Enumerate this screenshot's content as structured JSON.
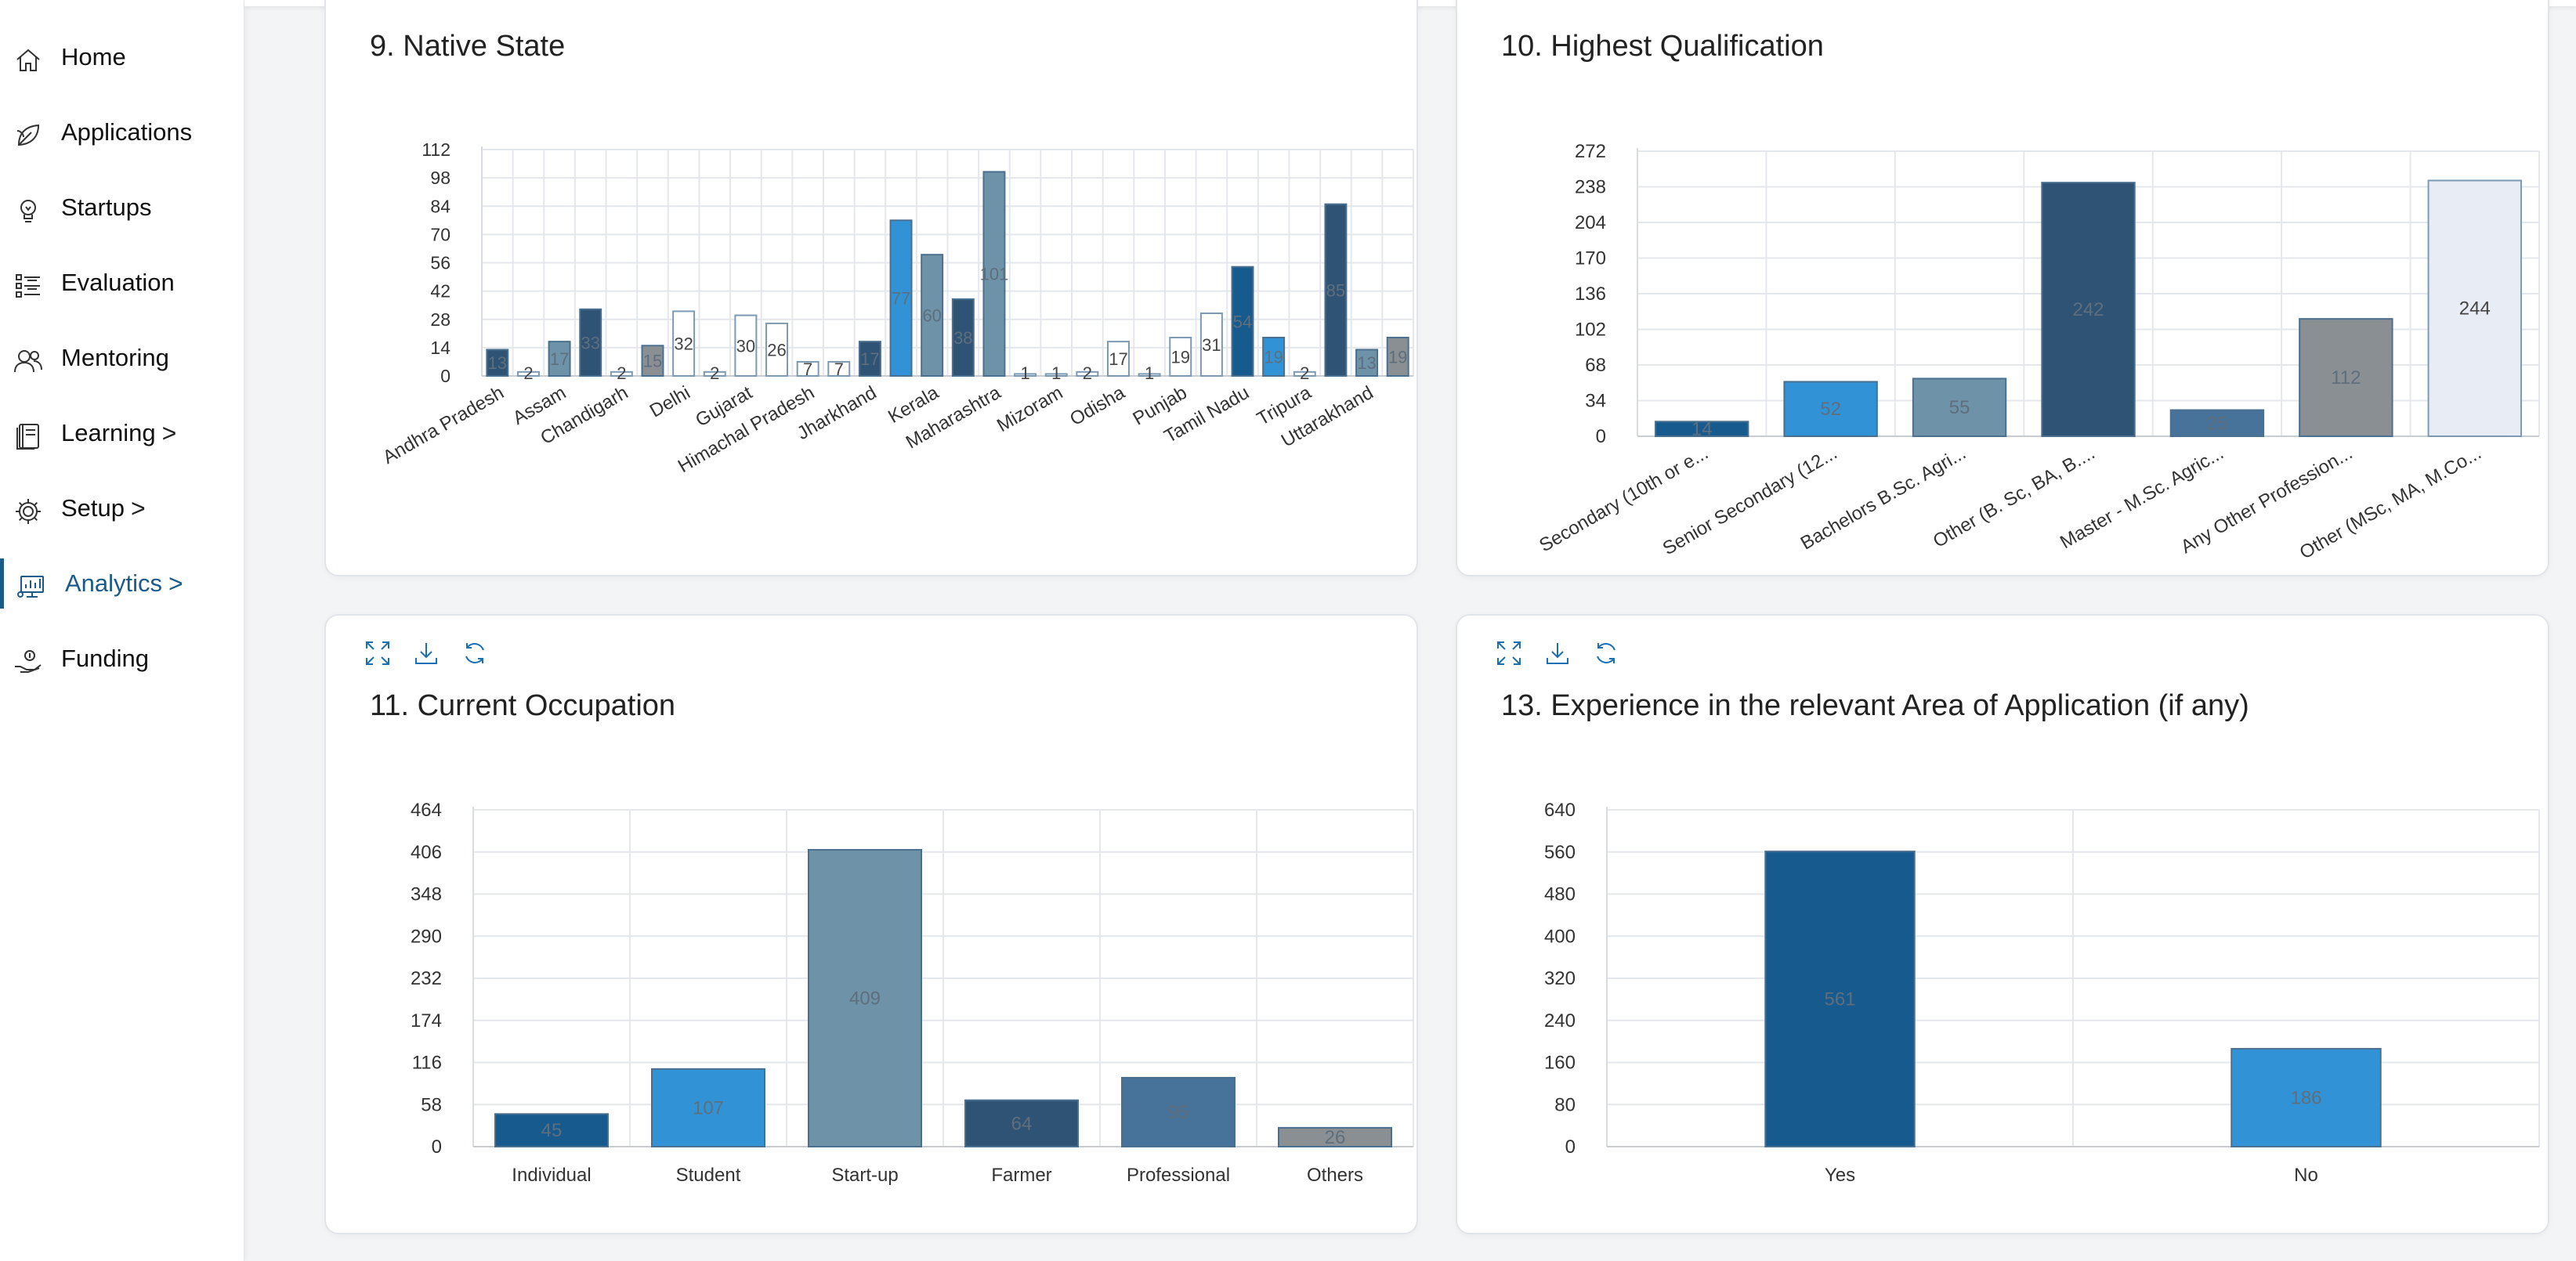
{
  "sidebar": {
    "items": [
      {
        "label": "Home",
        "icon": "home-icon",
        "chevron": ""
      },
      {
        "label": "Applications",
        "icon": "leaf-icon",
        "chevron": ""
      },
      {
        "label": "Startups",
        "icon": "bulb-icon",
        "chevron": ""
      },
      {
        "label": "Evaluation",
        "icon": "checklist-icon",
        "chevron": ""
      },
      {
        "label": "Mentoring",
        "icon": "users-icon",
        "chevron": ""
      },
      {
        "label": "Learning",
        "icon": "book-icon",
        "chevron": ">"
      },
      {
        "label": "Setup",
        "icon": "gear-icon",
        "chevron": ">"
      },
      {
        "label": "Analytics",
        "icon": "analytics-icon",
        "chevron": ">"
      },
      {
        "label": "Funding",
        "icon": "funding-icon",
        "chevron": ""
      }
    ],
    "active_index": 7
  },
  "colors": {
    "accent": "#1b5b8a",
    "tool_icon": "#1b6fb3",
    "grid": "#e4e7eb"
  },
  "chart_data": [
    {
      "id": "native-state",
      "type": "bar",
      "title": "9. Native State",
      "yticks": [
        0,
        14,
        28,
        42,
        56,
        70,
        84,
        98,
        112
      ],
      "ylim": [
        0,
        112
      ],
      "categories": [
        "Andhra Pradesh",
        "",
        "Assam",
        "",
        "Chandigarh",
        "",
        "Delhi",
        "",
        "Gujarat",
        "",
        "Himachal Pradesh",
        "",
        "Jharkhand",
        "",
        "Kerala",
        "",
        "Maharashtra",
        "",
        "Mizoram",
        "",
        "Odisha",
        "",
        "Punjab",
        "",
        "Tamil Nadu",
        "",
        "Tripura",
        "",
        "Uttarakhand",
        ""
      ],
      "values": [
        13,
        2,
        17,
        33,
        2,
        15,
        32,
        2,
        30,
        26,
        7,
        7,
        17,
        77,
        60,
        38,
        101,
        1,
        1,
        2,
        17,
        1,
        19,
        31,
        54,
        19,
        2,
        85,
        13,
        19
      ],
      "labels": [
        "13",
        "2",
        "17",
        "33",
        "2",
        "15",
        "32",
        "2",
        "30",
        "26",
        "7",
        "7",
        "17",
        "77",
        "60",
        "38",
        "101",
        "1",
        "1",
        "2",
        "17",
        "1",
        "19",
        "31",
        "54",
        "19",
        "2",
        "85",
        "13",
        "19"
      ],
      "colors": [
        "#2f5375",
        "#ffffff",
        "#6e93a8",
        "#2f5375",
        "#ffffff",
        "#8a8f94",
        "#ffffff",
        "#ffffff",
        "#ffffff",
        "#ffffff",
        "#ffffff",
        "#ffffff",
        "#2f5375",
        "#3193d6",
        "#6e93a8",
        "#2f5375",
        "#6e93a8",
        "#ffffff",
        "#ffffff",
        "#ffffff",
        "#ffffff",
        "#ffffff",
        "#ffffff",
        "#ffffff",
        "#175a8e",
        "#3193d6",
        "#ffffff",
        "#2f5375",
        "#6e93a8",
        "#8a8f94"
      ],
      "xlabel": "",
      "ylabel": ""
    },
    {
      "id": "highest-qualification",
      "type": "bar",
      "title": "10. Highest Qualification",
      "yticks": [
        0,
        34,
        68,
        102,
        136,
        170,
        204,
        238,
        272
      ],
      "ylim": [
        0,
        272
      ],
      "categories": [
        "Secondary (10th or e...",
        "Senior Secondary (12...",
        "Bachelors B.Sc. Agri...",
        "Other (B. Sc, BA, B....",
        "Master - M.Sc. Agric...",
        "Any Other Profession...",
        "Other (MSc, MA, M.Co..."
      ],
      "values": [
        14,
        52,
        55,
        242,
        25,
        112,
        244
      ],
      "labels": [
        "14",
        "52",
        "55",
        "242",
        "25",
        "112",
        "244"
      ],
      "colors": [
        "#175a8e",
        "#3193d6",
        "#6e93a8",
        "#2f5375",
        "#47739a",
        "#8a8f94",
        "#e8ecf4"
      ],
      "xlabel": "",
      "ylabel": ""
    },
    {
      "id": "current-occupation",
      "type": "bar",
      "title": "11. Current Occupation",
      "yticks": [
        0,
        58,
        116,
        174,
        232,
        290,
        348,
        406,
        464
      ],
      "ylim": [
        0,
        464
      ],
      "categories": [
        "Individual",
        "Student",
        "Start-up",
        "Farmer",
        "Professional",
        "Others"
      ],
      "values": [
        45,
        107,
        409,
        64,
        95,
        26
      ],
      "labels": [
        "45",
        "107",
        "409",
        "64",
        "95",
        "26"
      ],
      "colors": [
        "#175a8e",
        "#3193d6",
        "#6e93a8",
        "#2f5375",
        "#47739a",
        "#8a8f94"
      ],
      "xlabel": "",
      "ylabel": ""
    },
    {
      "id": "experience",
      "type": "bar",
      "title": "13. Experience in the relevant Area of Application (if any)",
      "yticks": [
        0,
        80,
        160,
        240,
        320,
        400,
        480,
        560,
        640
      ],
      "ylim": [
        0,
        640
      ],
      "categories": [
        "Yes",
        "No"
      ],
      "values": [
        561,
        186
      ],
      "labels": [
        "561",
        "186"
      ],
      "colors": [
        "#175a8e",
        "#3193d6"
      ],
      "xlabel": "",
      "ylabel": ""
    }
  ]
}
